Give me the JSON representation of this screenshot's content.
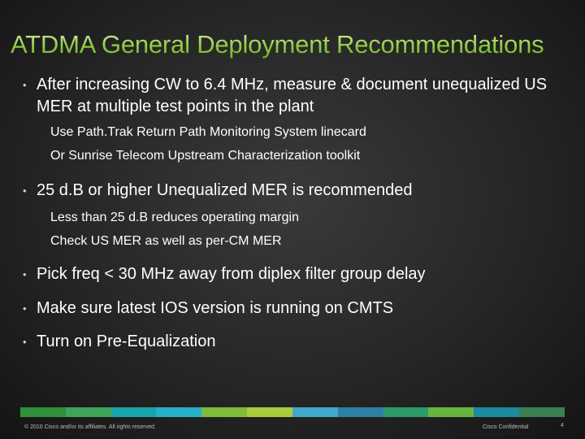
{
  "slide": {
    "title": "ATDMA General Deployment Recommendations",
    "bullets": [
      {
        "text": "After increasing CW to 6.4 MHz, measure & document unequalized US MER at multiple test points in the plant",
        "sub": [
          "Use Path.Trak Return Path Monitoring System linecard",
          "Or Sunrise Telecom Upstream Characterization toolkit"
        ]
      },
      {
        "text": "25 d.B or higher Unequalized MER is recommended",
        "sub": [
          "Less than 25 d.B reduces operating margin",
          "Check US MER as well as per-CM MER"
        ]
      },
      {
        "text": "Pick freq < 30 MHz away from diplex filter group delay",
        "sub": []
      },
      {
        "text": "Make sure latest IOS version is running on CMTS",
        "sub": []
      },
      {
        "text": "Turn on Pre-Equalization",
        "sub": []
      }
    ],
    "bullet_glyph": "•"
  },
  "footer": {
    "copyright": "© 2010 Cisco and/or its affiliates. All rights reserved.",
    "confidential": "Cisco Confidential",
    "page_number": "4"
  },
  "colors": {
    "background": "#262626",
    "title_gradient_top": "#d6eeb2",
    "title_gradient_bottom": "#6fb52a",
    "text": "#ffffff",
    "footer_bar": [
      "#2f8f3a",
      "#3fa35a",
      "#1aa3a8",
      "#27b0c8",
      "#7ebc3a",
      "#a9cd3d",
      "#41a8c9",
      "#2d7fa6",
      "#2c9b6a",
      "#67b53f",
      "#1b8ba0",
      "#3a7f53"
    ]
  }
}
